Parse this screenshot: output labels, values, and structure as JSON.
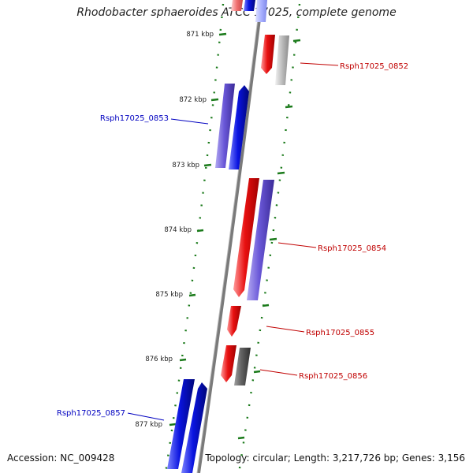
{
  "title": "Rhodobacter sphaeroides ATCC 17025, complete genome",
  "accession": "Accession: NC_009428",
  "topology": "Topology: circular; Length: 3,217,726 bp; Genes: 3,156",
  "colors": {
    "forward_gene": "#e81010",
    "reverse_gene": "#0a14e0",
    "gene_light_red": "#f07070",
    "gene_gray": "#c0c0c0",
    "gene_dark_gray": "#606060",
    "gene_purple": "#6a58d8",
    "tick_green": "#1a7a1a",
    "axis_gray": "#808080",
    "label_blue": "#0000c0",
    "label_red": "#c00000"
  },
  "ticks": [
    {
      "label": "871 kbp"
    },
    {
      "label": "872 kbp"
    },
    {
      "label": "873 kbp"
    },
    {
      "label": "874 kbp"
    },
    {
      "label": "875 kbp"
    },
    {
      "label": "876 kbp"
    },
    {
      "label": "877 kbp"
    }
  ],
  "gene_labels": [
    {
      "text": "Rsph17025_0852",
      "strand": "forward"
    },
    {
      "text": "Rsph17025_0853",
      "strand": "reverse"
    },
    {
      "text": "Rsph17025_0854",
      "strand": "forward"
    },
    {
      "text": "Rsph17025_0855",
      "strand": "forward"
    },
    {
      "text": "Rsph17025_0856",
      "strand": "forward"
    },
    {
      "text": "Rsph17025_0857",
      "strand": "reverse"
    }
  ]
}
